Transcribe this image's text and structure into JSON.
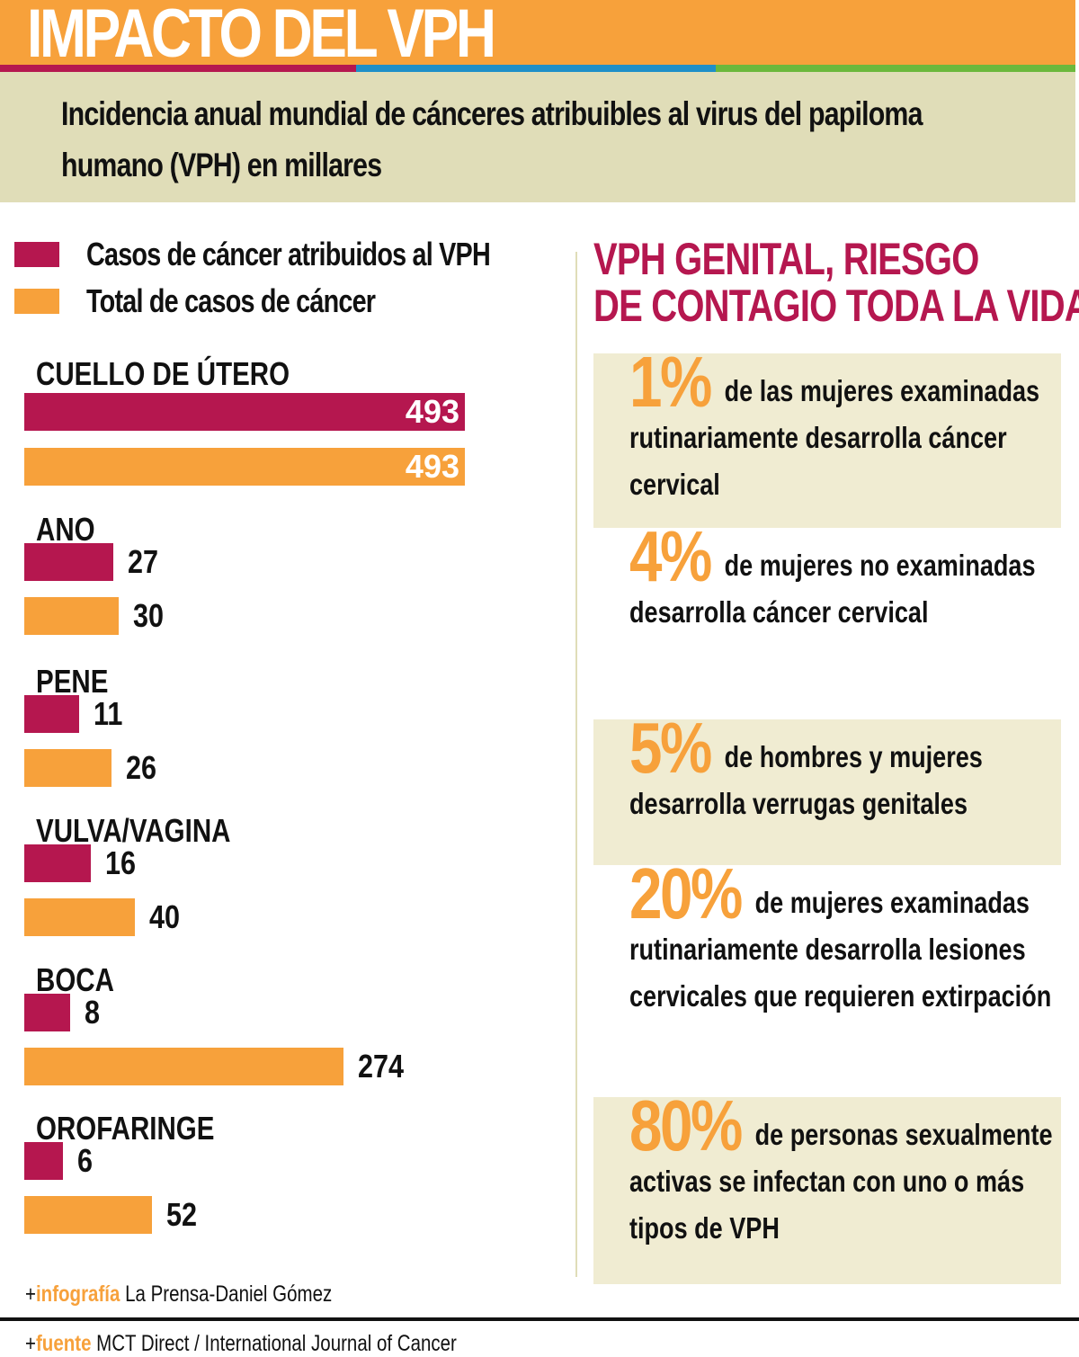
{
  "header": {
    "title": "IMPACTO DEL VPH",
    "subtitle": "Incidencia anual mundial de cánceres atribuibles al virus del papiloma humano (VPH) en millares"
  },
  "colors": {
    "hpv": "#b5174f",
    "total": "#f7a13b",
    "stripe_blue": "#1f8fc8",
    "stripe_green": "#6cb83c",
    "panel": "#e0ddb8"
  },
  "chart_data": {
    "type": "bar",
    "orientation": "horizontal",
    "title": "Incidencia anual mundial de cánceres atribuibles al virus del papiloma humano (VPH) en millares",
    "categories": [
      "CUELLO DE ÚTERO",
      "ANO",
      "PENE",
      "VULVA/VAGINA",
      "BOCA",
      "OROFARINGE"
    ],
    "series": [
      {
        "name": "Casos de cáncer atribuidos al VPH",
        "values": [
          493,
          27,
          11,
          16,
          8,
          6
        ]
      },
      {
        "name": "Total de casos de cáncer",
        "values": [
          493,
          30,
          26,
          40,
          274,
          52
        ]
      }
    ],
    "legend": "top-left"
  },
  "right": {
    "title_l1": "VPH GENITAL, RIESGO",
    "title_l2": "DE CONTAGIO TODA LA VIDA",
    "facts": [
      {
        "pct": "1%",
        "text": "de las mujeres examinadas rutinariamente desarrolla cáncer cervical"
      },
      {
        "pct": "4%",
        "text": "de mujeres no examinadas desarrolla cáncer cervical"
      },
      {
        "pct": "5%",
        "text": "de hombres y mujeres desarrolla verrugas genitales"
      },
      {
        "pct": "20%",
        "text": "de mujeres examinadas rutinariamente desarrolla lesiones cervicales que requieren extirpación"
      },
      {
        "pct": "80%",
        "text": "de personas sexualmente activas se infectan con uno o más tipos de VPH"
      }
    ]
  },
  "footer": {
    "credit_label": "infografía",
    "credit": "La Prensa-Daniel Gómez",
    "source_label": "fuente",
    "source": "MCT Direct /  International Journal of Cancer"
  }
}
